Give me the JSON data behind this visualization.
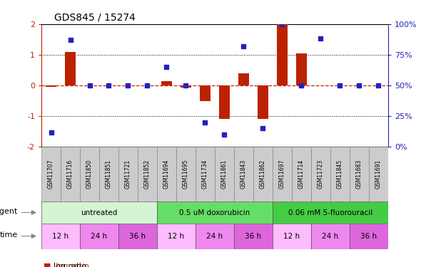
{
  "title": "GDS845 / 15274",
  "samples": [
    "GSM11707",
    "GSM11716",
    "GSM11850",
    "GSM11851",
    "GSM11721",
    "GSM11852",
    "GSM11694",
    "GSM11695",
    "GSM11734",
    "GSM11861",
    "GSM11843",
    "GSM11862",
    "GSM11697",
    "GSM11714",
    "GSM11723",
    "GSM11845",
    "GSM11683",
    "GSM11691"
  ],
  "log_ratio": [
    -0.05,
    1.1,
    0.0,
    0.0,
    0.0,
    0.0,
    0.15,
    -0.08,
    -0.5,
    -1.08,
    0.4,
    -1.08,
    2.0,
    1.05,
    0.0,
    0.0,
    0.0,
    0.0
  ],
  "percentile_rank": [
    12,
    87,
    50,
    50,
    50,
    50,
    65,
    50,
    20,
    10,
    82,
    15,
    100,
    50,
    88,
    50,
    50,
    50
  ],
  "agent_groups": [
    {
      "label": "untreated",
      "start": 0,
      "end": 6,
      "color": "#d4f5d4"
    },
    {
      "label": "0.5 uM doxorubicin",
      "start": 6,
      "end": 12,
      "color": "#66dd66"
    },
    {
      "label": "0.06 mM 5-fluorouracil",
      "start": 12,
      "end": 18,
      "color": "#44cc44"
    }
  ],
  "time_groups": [
    {
      "label": "12 h",
      "start": 0,
      "end": 2,
      "color": "#ffbbff"
    },
    {
      "label": "24 h",
      "start": 2,
      "end": 4,
      "color": "#ee88ee"
    },
    {
      "label": "36 h",
      "start": 4,
      "end": 6,
      "color": "#dd66dd"
    },
    {
      "label": "12 h",
      "start": 6,
      "end": 8,
      "color": "#ffbbff"
    },
    {
      "label": "24 h",
      "start": 8,
      "end": 10,
      "color": "#ee88ee"
    },
    {
      "label": "36 h",
      "start": 10,
      "end": 12,
      "color": "#dd66dd"
    },
    {
      "label": "12 h",
      "start": 12,
      "end": 14,
      "color": "#ffbbff"
    },
    {
      "label": "24 h",
      "start": 14,
      "end": 16,
      "color": "#ee88ee"
    },
    {
      "label": "36 h",
      "start": 16,
      "end": 18,
      "color": "#dd66dd"
    }
  ],
  "ylim": [
    -2,
    2
  ],
  "bar_color": "#bb2200",
  "dot_color": "#2222bb",
  "zero_line_color": "#cc2200",
  "background_color": "#ffffff",
  "sample_box_color": "#cccccc",
  "sample_text_color": "#000000",
  "agent_label_color": "#000000",
  "time_label_color": "#000000"
}
